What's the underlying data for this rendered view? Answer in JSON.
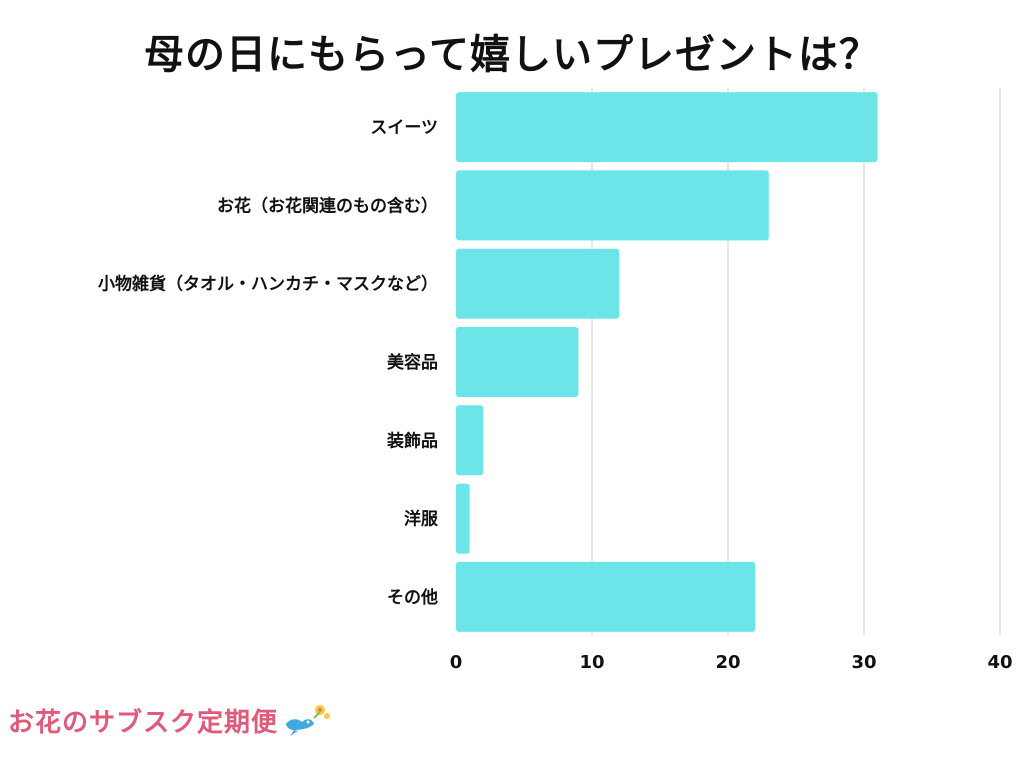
{
  "title": "母の日にもらって嬉しいプレゼントは？",
  "logo": {
    "text": "お花のサブスク定期便",
    "icon": "bird-with-flower-icon"
  },
  "colors": {
    "bar": "#6ce5e8",
    "grid": "#d0d0d0",
    "text": "#111111",
    "logo": "#e05a7a"
  },
  "chart_data": {
    "type": "bar",
    "orientation": "horizontal",
    "title": "母の日にもらって嬉しいプレゼントは？",
    "categories": [
      "スイーツ",
      "お花（お花関連のもの含む）",
      "小物雑貨（タオル・ハンカチ・マスクなど）",
      "美容品",
      "装飾品",
      "洋服",
      "その他"
    ],
    "values": [
      31,
      23,
      12,
      9,
      2,
      1,
      22
    ],
    "xlim": [
      0,
      40
    ],
    "xticks": [
      0,
      10,
      20,
      30,
      40
    ],
    "grid": true,
    "xlabel": "",
    "ylabel": ""
  }
}
